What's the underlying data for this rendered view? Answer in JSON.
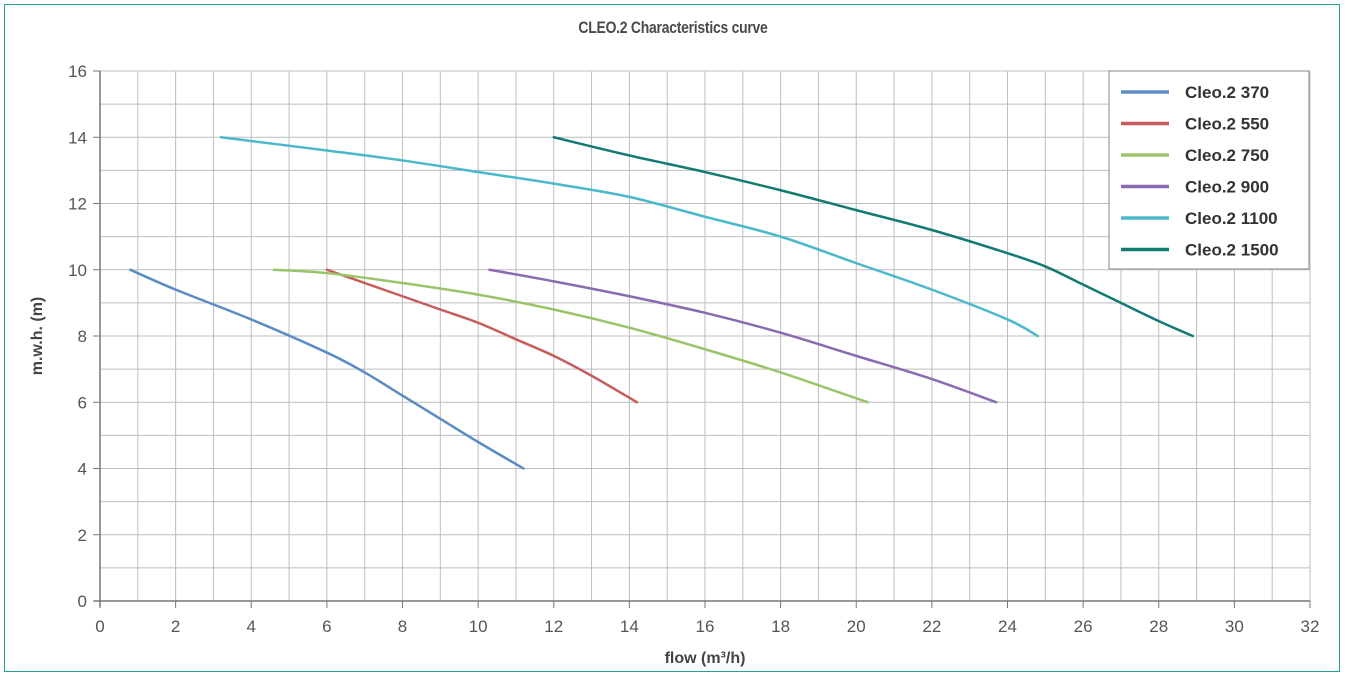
{
  "chart_data": {
    "type": "line",
    "title": "CLEO.2 Characteristics curve",
    "xlabel": "flow (m³/h)",
    "ylabel": "m.w.h. (m)",
    "xlim": [
      0,
      32
    ],
    "ylim": [
      0,
      16
    ],
    "xticks": [
      0,
      2,
      4,
      6,
      8,
      10,
      12,
      14,
      16,
      18,
      20,
      22,
      24,
      26,
      28,
      30,
      32
    ],
    "yticks": [
      0,
      2,
      4,
      6,
      8,
      10,
      12,
      14,
      16
    ],
    "grid": true,
    "legend_position": "top-right",
    "series": [
      {
        "name": "Cleo.2 370",
        "color": "#5b8cc4",
        "points": [
          [
            0.8,
            10
          ],
          [
            2,
            9.4
          ],
          [
            4,
            8.5
          ],
          [
            6,
            7.5
          ],
          [
            7,
            6.9
          ],
          [
            8,
            6.2
          ],
          [
            9,
            5.5
          ],
          [
            10,
            4.8
          ],
          [
            11.2,
            4
          ]
        ]
      },
      {
        "name": "Cleo.2 550",
        "color": "#c65d5a",
        "points": [
          [
            6,
            10
          ],
          [
            7,
            9.6
          ],
          [
            8,
            9.2
          ],
          [
            9,
            8.8
          ],
          [
            10,
            8.4
          ],
          [
            11,
            7.9
          ],
          [
            12,
            7.4
          ],
          [
            13,
            6.8
          ],
          [
            14.2,
            6
          ]
        ]
      },
      {
        "name": "Cleo.2 750",
        "color": "#9bc46a",
        "points": [
          [
            4.6,
            10
          ],
          [
            6,
            9.9
          ],
          [
            8,
            9.6
          ],
          [
            10,
            9.25
          ],
          [
            12,
            8.8
          ],
          [
            14,
            8.25
          ],
          [
            16,
            7.6
          ],
          [
            18,
            6.9
          ],
          [
            20.3,
            6
          ]
        ]
      },
      {
        "name": "Cleo.2 900",
        "color": "#8a6bb3",
        "points": [
          [
            10.3,
            10
          ],
          [
            12,
            9.65
          ],
          [
            14,
            9.2
          ],
          [
            16,
            8.7
          ],
          [
            18,
            8.1
          ],
          [
            20,
            7.4
          ],
          [
            22,
            6.7
          ],
          [
            23.7,
            6
          ]
        ]
      },
      {
        "name": "Cleo.2 1100",
        "color": "#4bb8cc",
        "points": [
          [
            3.2,
            14
          ],
          [
            6,
            13.6
          ],
          [
            8,
            13.3
          ],
          [
            10,
            12.95
          ],
          [
            12,
            12.6
          ],
          [
            14,
            12.2
          ],
          [
            16,
            11.6
          ],
          [
            18,
            11
          ],
          [
            20,
            10.2
          ],
          [
            22,
            9.4
          ],
          [
            24,
            8.5
          ],
          [
            24.8,
            8
          ]
        ]
      },
      {
        "name": "Cleo.2 1500",
        "color": "#137a72",
        "points": [
          [
            12,
            14
          ],
          [
            14,
            13.45
          ],
          [
            16,
            12.95
          ],
          [
            18,
            12.4
          ],
          [
            20,
            11.8
          ],
          [
            22,
            11.2
          ],
          [
            24,
            10.5
          ],
          [
            25,
            10.1
          ],
          [
            26,
            9.55
          ],
          [
            27,
            9
          ],
          [
            28,
            8.45
          ],
          [
            28.9,
            8
          ]
        ]
      }
    ]
  }
}
